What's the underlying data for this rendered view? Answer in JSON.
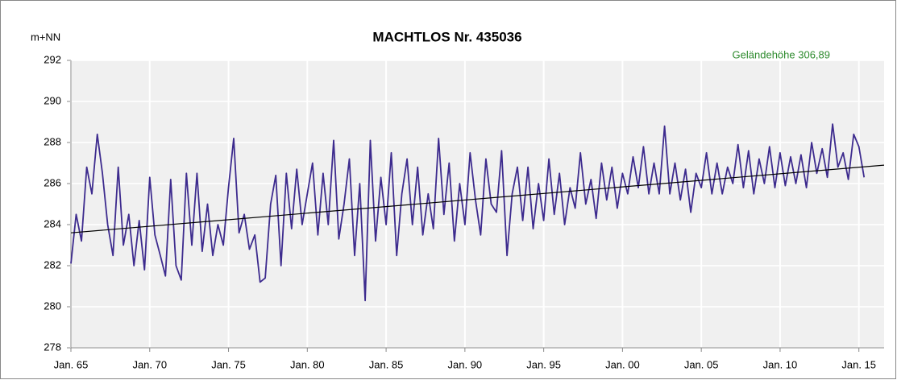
{
  "chart_data": {
    "type": "line",
    "title": "MACHTLOS  Nr. 435036",
    "y_label": "m+NN",
    "annotation": "Geländehöhe 306,89",
    "x": [
      1965,
      1965.33,
      1965.67,
      1966,
      1966.33,
      1966.67,
      1967,
      1967.33,
      1967.67,
      1968,
      1968.33,
      1968.67,
      1969,
      1969.33,
      1969.67,
      1970,
      1970.33,
      1970.67,
      1971,
      1971.33,
      1971.67,
      1972,
      1972.33,
      1972.67,
      1973,
      1973.33,
      1973.67,
      1974,
      1974.33,
      1974.67,
      1975,
      1975.33,
      1975.67,
      1976,
      1976.33,
      1976.67,
      1977,
      1977.33,
      1977.67,
      1978,
      1978.33,
      1978.67,
      1979,
      1979.33,
      1979.67,
      1980,
      1980.33,
      1980.67,
      1981,
      1981.33,
      1981.67,
      1982,
      1982.33,
      1982.67,
      1983,
      1983.33,
      1983.67,
      1984,
      1984.33,
      1984.67,
      1985,
      1985.33,
      1985.67,
      1986,
      1986.33,
      1986.67,
      1987,
      1987.33,
      1987.67,
      1988,
      1988.33,
      1988.67,
      1989,
      1989.33,
      1989.67,
      1990,
      1990.33,
      1990.67,
      1991,
      1991.33,
      1991.67,
      1992,
      1992.33,
      1992.67,
      1993,
      1993.33,
      1993.67,
      1994,
      1994.33,
      1994.67,
      1995,
      1995.33,
      1995.67,
      1996,
      1996.33,
      1996.67,
      1997,
      1997.33,
      1997.67,
      1998,
      1998.33,
      1998.67,
      1999,
      1999.33,
      1999.67,
      2000,
      2000.33,
      2000.67,
      2001,
      2001.33,
      2001.67,
      2002,
      2002.33,
      2002.67,
      2003,
      2003.33,
      2003.67,
      2004,
      2004.33,
      2004.67,
      2005,
      2005.33,
      2005.67,
      2006,
      2006.33,
      2006.67,
      2007,
      2007.33,
      2007.67,
      2008,
      2008.33,
      2008.67,
      2009,
      2009.33,
      2009.67,
      2010,
      2010.33,
      2010.67,
      2011,
      2011.33,
      2011.67,
      2012,
      2012.33,
      2012.67,
      2013,
      2013.33,
      2013.67,
      2014,
      2014.33,
      2014.67,
      2015,
      2015.33
    ],
    "series": [
      {
        "color": "#3d2b8e",
        "values": [
          282.1,
          284.5,
          283.2,
          286.8,
          285.5,
          288.4,
          286.5,
          284.0,
          282.5,
          286.8,
          283.0,
          284.5,
          282.0,
          284.2,
          281.8,
          286.3,
          283.5,
          282.5,
          281.5,
          286.2,
          282.0,
          281.3,
          286.5,
          283.0,
          286.5,
          282.7,
          285.0,
          282.5,
          284.0,
          283.0,
          285.8,
          288.2,
          283.6,
          284.5,
          282.8,
          283.5,
          281.2,
          281.4,
          285.0,
          286.4,
          282.0,
          286.5,
          283.8,
          286.7,
          284.0,
          285.5,
          287.0,
          283.5,
          286.5,
          284.0,
          288.1,
          283.3,
          285.0,
          287.2,
          282.5,
          286.0,
          280.3,
          288.1,
          283.2,
          286.3,
          284.0,
          287.5,
          282.5,
          285.5,
          287.2,
          284.0,
          286.8,
          283.5,
          285.5,
          283.8,
          288.2,
          284.5,
          287.0,
          283.2,
          286.0,
          284.0,
          287.5,
          285.2,
          283.5,
          287.2,
          285.0,
          284.6,
          287.6,
          282.5,
          285.5,
          286.8,
          284.2,
          286.8,
          283.8,
          286.0,
          284.2,
          287.2,
          284.5,
          286.5,
          284.0,
          285.8,
          284.8,
          287.5,
          285.0,
          286.2,
          284.3,
          287.0,
          285.2,
          286.8,
          284.8,
          286.5,
          285.5,
          287.3,
          285.8,
          287.8,
          285.5,
          287.0,
          285.5,
          288.8,
          285.5,
          287.0,
          285.2,
          286.7,
          284.6,
          286.5,
          285.8,
          287.5,
          285.5,
          287.0,
          285.5,
          286.8,
          286.0,
          287.9,
          285.8,
          287.6,
          285.5,
          287.2,
          286.0,
          287.8,
          285.8,
          287.5,
          285.9,
          287.3,
          286.0,
          287.4,
          285.8,
          288.0,
          286.5,
          287.7,
          286.3,
          288.9,
          286.8,
          287.5,
          286.2,
          288.4,
          287.8,
          286.3
        ]
      }
    ],
    "trend": {
      "color": "#000000",
      "x": [
        1965,
        2016.6
      ],
      "values": [
        283.6,
        286.9
      ]
    },
    "xlim": [
      1965,
      2016.6
    ],
    "ylim": [
      278,
      292
    ],
    "xticks": [
      {
        "value": 1965,
        "label": "Jan. 65"
      },
      {
        "value": 1970,
        "label": "Jan. 70"
      },
      {
        "value": 1975,
        "label": "Jan. 75"
      },
      {
        "value": 1980,
        "label": "Jan. 80"
      },
      {
        "value": 1985,
        "label": "Jan. 85"
      },
      {
        "value": 1990,
        "label": "Jan. 90"
      },
      {
        "value": 1995,
        "label": "Jan. 95"
      },
      {
        "value": 2000,
        "label": "Jan. 00"
      },
      {
        "value": 2005,
        "label": "Jan. 05"
      },
      {
        "value": 2010,
        "label": "Jan. 10"
      },
      {
        "value": 2015,
        "label": "Jan. 15"
      }
    ],
    "yticks": [
      278,
      280,
      282,
      284,
      286,
      288,
      290,
      292
    ],
    "grid": true
  }
}
